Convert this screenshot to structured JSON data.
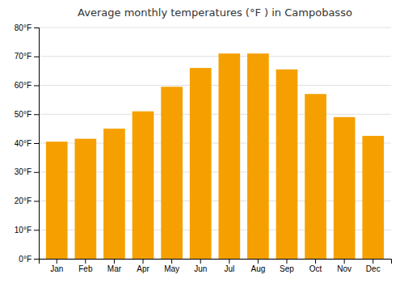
{
  "chart_data": {
    "type": "bar",
    "title": "Average monthly temperatures (°F ) in Campobasso",
    "categories": [
      "Jan",
      "Feb",
      "Mar",
      "Apr",
      "May",
      "Jun",
      "Jul",
      "Aug",
      "Sep",
      "Oct",
      "Nov",
      "Dec"
    ],
    "values": [
      40.5,
      41.5,
      45.0,
      51.0,
      59.5,
      66.0,
      71.0,
      71.0,
      65.5,
      57.0,
      49.0,
      42.5
    ],
    "color": "#F5A000",
    "ylim": [
      0,
      80
    ],
    "yticks": [
      {
        "value": 0,
        "label": "0°F"
      },
      {
        "value": 10,
        "label": "10°F"
      },
      {
        "value": 20,
        "label": "20°F"
      },
      {
        "value": 30,
        "label": "30°F"
      },
      {
        "value": 40,
        "label": "40°F"
      },
      {
        "value": 50,
        "label": "50°F"
      },
      {
        "value": 60,
        "label": "60°F"
      },
      {
        "value": 70,
        "label": "70°F"
      },
      {
        "value": 80,
        "label": "80°F"
      }
    ],
    "grid": true
  }
}
